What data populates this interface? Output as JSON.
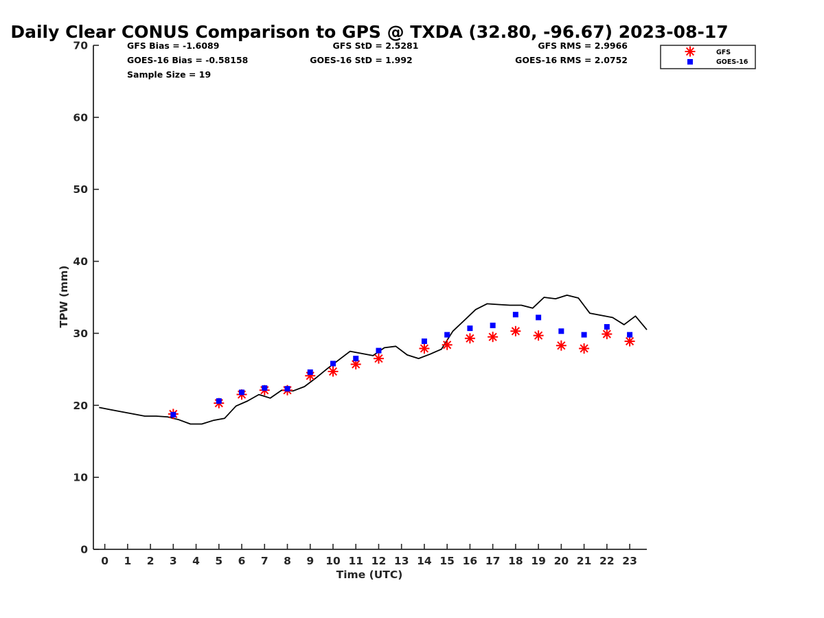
{
  "chart_data": {
    "type": "scatter",
    "title": "Daily Clear CONUS Comparison to GPS @ TXDA (32.80, -96.67) 2023-08-17",
    "xlabel": "Time (UTC)",
    "ylabel": "TPW (mm)",
    "xlim": [
      -0.5,
      23.75
    ],
    "ylim": [
      0,
      70
    ],
    "x_ticks": [
      "0",
      "1",
      "2",
      "3",
      "4",
      "5",
      "6",
      "7",
      "8",
      "9",
      "10",
      "11",
      "12",
      "13",
      "14",
      "15",
      "16",
      "17",
      "18",
      "19",
      "20",
      "21",
      "22",
      "23"
    ],
    "y_ticks": [
      "0",
      "10",
      "20",
      "30",
      "40",
      "50",
      "60",
      "70"
    ],
    "grid": false,
    "legend_position": "top-right",
    "stats": {
      "gfs_bias": "GFS Bias = -1.6089",
      "goes_bias": "GOES-16 Bias = -0.58158",
      "sample_size": "Sample Size = 19",
      "gfs_std": "GFS StD = 2.5281",
      "goes_std": "GOES-16 StD = 1.992",
      "gfs_rms": "GFS RMS = 2.9966",
      "goes_rms": "GOES-16 RMS = 2.0752"
    },
    "colors": {
      "gps": "#000000",
      "gfs": "#ff0000",
      "goes": "#0000ff"
    },
    "series": [
      {
        "id": "gps",
        "mode": "line",
        "x": [
          -0.25,
          0.25,
          0.75,
          1.25,
          1.75,
          2.25,
          2.75,
          3.25,
          3.75,
          4.25,
          4.75,
          5.25,
          5.75,
          6.25,
          6.75,
          7.25,
          7.75,
          8.25,
          8.75,
          9.25,
          9.75,
          10.25,
          10.75,
          11.25,
          11.75,
          12.25,
          12.75,
          13.25,
          13.75,
          14.25,
          14.75,
          15.25,
          15.75,
          16.25,
          16.75,
          17.25,
          17.75,
          18.25,
          18.75,
          19.25,
          19.75,
          20.25,
          20.75,
          21.25,
          21.75,
          22.25,
          22.75,
          23.25,
          23.75
        ],
        "y": [
          19.7,
          19.4,
          19.1,
          18.8,
          18.5,
          18.5,
          18.4,
          18.0,
          17.4,
          17.4,
          17.9,
          18.2,
          19.9,
          20.6,
          21.5,
          21.0,
          22.1,
          22.0,
          22.6,
          23.8,
          25.1,
          26.3,
          27.5,
          27.2,
          26.9,
          28.0,
          28.2,
          27.0,
          26.5,
          27.1,
          27.8,
          30.3,
          31.8,
          33.3,
          34.1,
          34.0,
          33.9,
          33.9,
          33.5,
          35.0,
          34.8,
          35.3,
          34.9,
          32.8,
          32.5,
          32.2,
          31.2,
          32.4,
          30.5
        ]
      },
      {
        "id": "gfs",
        "name": "GFS",
        "mode": "marker-star",
        "x": [
          3,
          5,
          6,
          7,
          8,
          9,
          10,
          11,
          12,
          14,
          15,
          16,
          17,
          18,
          19,
          20,
          21,
          22,
          23
        ],
        "y": [
          18.8,
          20.3,
          21.5,
          22.1,
          22.1,
          24.1,
          24.7,
          25.7,
          26.5,
          27.9,
          28.4,
          29.3,
          29.5,
          30.3,
          29.7,
          28.3,
          27.9,
          29.9,
          28.9
        ]
      },
      {
        "id": "goes",
        "name": "GOES-16",
        "mode": "marker-square",
        "x": [
          3,
          5,
          6,
          7,
          8,
          9,
          10,
          11,
          12,
          14,
          15,
          16,
          17,
          18,
          19,
          20,
          21,
          22,
          23
        ],
        "y": [
          18.7,
          20.6,
          21.8,
          22.4,
          22.3,
          24.6,
          25.8,
          26.5,
          27.6,
          28.9,
          29.8,
          30.7,
          31.1,
          32.6,
          32.2,
          30.3,
          29.8,
          30.9,
          29.8
        ]
      }
    ]
  }
}
